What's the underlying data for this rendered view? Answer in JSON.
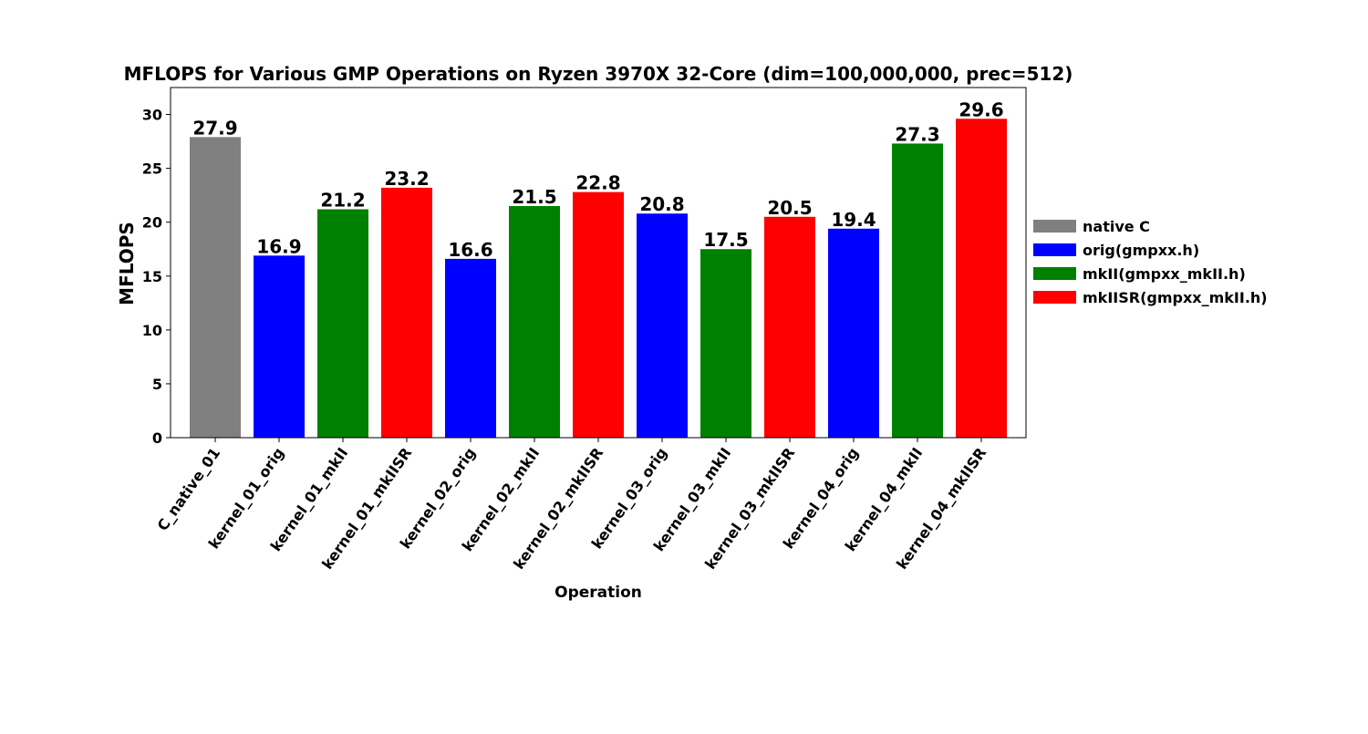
{
  "chart_data": {
    "type": "bar",
    "title": "MFLOPS for Various GMP Operations on Ryzen 3970X 32-Core (dim=100,000,000, prec=512)",
    "xlabel": "Operation",
    "ylabel": "MFLOPS",
    "ylim": [
      0,
      32.5
    ],
    "yticks": [
      0,
      5,
      10,
      15,
      20,
      25,
      30
    ],
    "grid": false,
    "legend_position": "right",
    "categories": [
      "C_native_01",
      "kernel_01_orig",
      "kernel_01_mkII",
      "kernel_01_mkIISR",
      "kernel_02_orig",
      "kernel_02_mkII",
      "kernel_02_mkIISR",
      "kernel_03_orig",
      "kernel_03_mkII",
      "kernel_03_mkIISR",
      "kernel_04_orig",
      "kernel_04_mkII",
      "kernel_04_mkIISR"
    ],
    "values": [
      27.9,
      16.9,
      21.2,
      23.2,
      16.6,
      21.5,
      22.8,
      20.8,
      17.5,
      20.5,
      19.4,
      27.3,
      29.6
    ],
    "data_labels": [
      "27.9",
      "16.9",
      "21.2",
      "23.2",
      "16.6",
      "21.5",
      "22.8",
      "20.8",
      "17.5",
      "20.5",
      "19.4",
      "27.3",
      "29.6"
    ],
    "bar_series": [
      0,
      1,
      2,
      3,
      1,
      2,
      3,
      1,
      2,
      3,
      1,
      2,
      3
    ],
    "series": [
      {
        "name": "native C",
        "color": "#808080"
      },
      {
        "name": "orig(gmpxx.h)",
        "color": "#0000ff"
      },
      {
        "name": "mkII(gmpxx_mkII.h)",
        "color": "#008000"
      },
      {
        "name": "mkIISR(gmpxx_mkII.h)",
        "color": "#ff0000"
      }
    ]
  }
}
